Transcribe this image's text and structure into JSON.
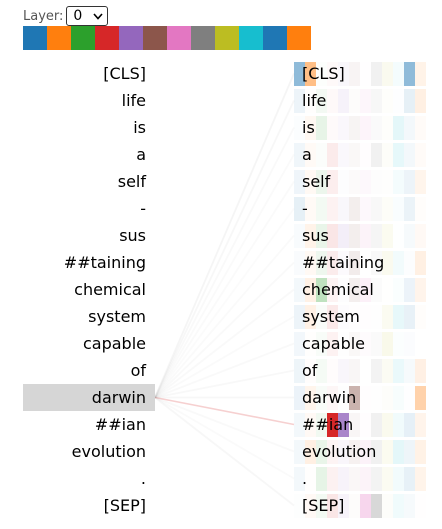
{
  "layer_control": {
    "label": "Layer:",
    "selected": "0"
  },
  "heads": {
    "colors": [
      "#1f77b4",
      "#ff7f0e",
      "#2ca02c",
      "#d62728",
      "#9467bd",
      "#8c564b",
      "#e377c2",
      "#7f7f7f",
      "#bcbd22",
      "#17becf",
      "#1f77b4",
      "#ff7f0e"
    ]
  },
  "tokens": [
    "[CLS]",
    "life",
    "is",
    "a",
    "self",
    "-",
    "sus",
    "##taining",
    "chemical",
    "system",
    "capable",
    "of",
    "darwin",
    "##ian",
    "evolution",
    ".",
    "[SEP]"
  ],
  "selected_token_index": 12
}
